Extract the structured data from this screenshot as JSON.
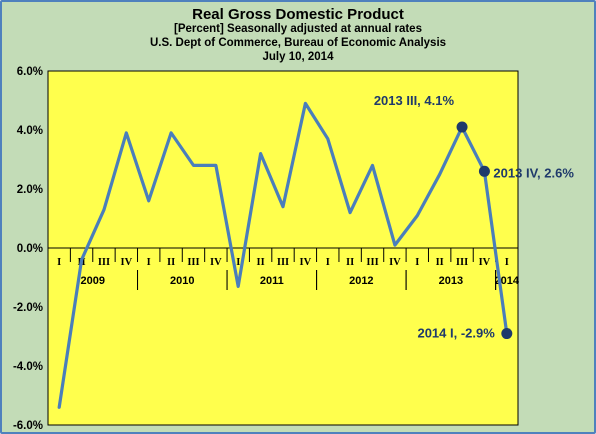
{
  "colors": {
    "background": "#c3dcb7",
    "plot_area": "#ffff4d",
    "series_line": "#4a7ebb",
    "marker": "#1f3a6b",
    "annotation_text": "#1f3a6b"
  },
  "chart_data": {
    "type": "line",
    "title": "Real Gross Domestic Product",
    "subtitle": [
      "[Percent] Seasonally adjusted at annual rates",
      "U.S. Dept of Commerce, Bureau of Economic Analysis",
      "July 10, 2014"
    ],
    "xlabel": "",
    "ylabel": "",
    "ylim": [
      -6,
      6
    ],
    "ytick_step": 2,
    "ytick_labels": [
      "6.0%",
      "4.0%",
      "2.0%",
      "0.0%",
      "-2.0%",
      "-4.0%",
      "-6.0%"
    ],
    "grid": false,
    "legend": "none",
    "categories": [
      "2009 I",
      "2009 II",
      "2009 III",
      "2009 IV",
      "2010 I",
      "2010 II",
      "2010 III",
      "2010 IV",
      "2011 I",
      "2011 II",
      "2011 III",
      "2011 IV",
      "2012 I",
      "2012 II",
      "2012 III",
      "2012 IV",
      "2013 I",
      "2013 II",
      "2013 III",
      "2013 IV",
      "2014 I"
    ],
    "quarter_labels": [
      "I",
      "II",
      "III",
      "IV",
      "I",
      "II",
      "III",
      "IV",
      "I",
      "II",
      "III",
      "IV",
      "I",
      "II",
      "III",
      "IV",
      "I",
      "II",
      "III",
      "IV",
      "I"
    ],
    "year_groups": [
      {
        "label": "2009",
        "start": 0,
        "count": 4
      },
      {
        "label": "2010",
        "start": 4,
        "count": 4
      },
      {
        "label": "2011",
        "start": 8,
        "count": 4
      },
      {
        "label": "2012",
        "start": 12,
        "count": 4
      },
      {
        "label": "2013",
        "start": 16,
        "count": 4
      },
      {
        "label": "2014",
        "start": 20,
        "count": 1
      }
    ],
    "series": [
      {
        "values": [
          -5.4,
          -0.4,
          1.3,
          3.9,
          1.6,
          3.9,
          2.8,
          2.8,
          -1.3,
          3.2,
          1.4,
          4.9,
          3.7,
          1.2,
          2.8,
          0.1,
          1.1,
          2.5,
          4.1,
          2.6,
          -2.9
        ]
      }
    ],
    "annotations": [
      {
        "index": 18,
        "text": "2013 III, 4.1%"
      },
      {
        "index": 19,
        "text": "2013 IV, 2.6%"
      },
      {
        "index": 20,
        "text": "2014 I, -2.9%"
      }
    ]
  }
}
